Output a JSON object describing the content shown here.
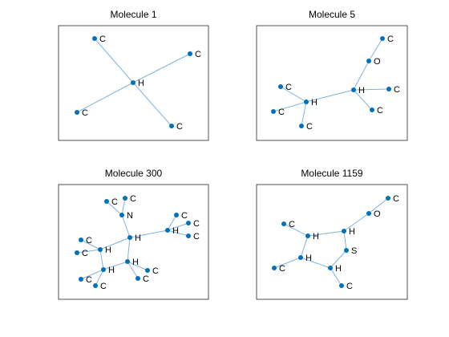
{
  "panels": [
    {
      "title": "Molecule 1",
      "nodes": [
        "H",
        "C",
        "C",
        "C",
        "C"
      ]
    },
    {
      "title": "Molecule 5",
      "nodes": [
        "C",
        "O",
        "H",
        "C",
        "C",
        "H",
        "C",
        "C",
        "C"
      ]
    },
    {
      "title": "Molecule 300",
      "nodes": [
        "C",
        "C",
        "N",
        "H",
        "H",
        "C",
        "C",
        "C",
        "H",
        "C",
        "C",
        "H",
        "H",
        "C",
        "C",
        "C",
        "C"
      ]
    },
    {
      "title": "Molecule 1159",
      "nodes": [
        "C",
        "O",
        "H",
        "S",
        "H",
        "C",
        "H",
        "C",
        "H",
        "C"
      ]
    }
  ]
}
